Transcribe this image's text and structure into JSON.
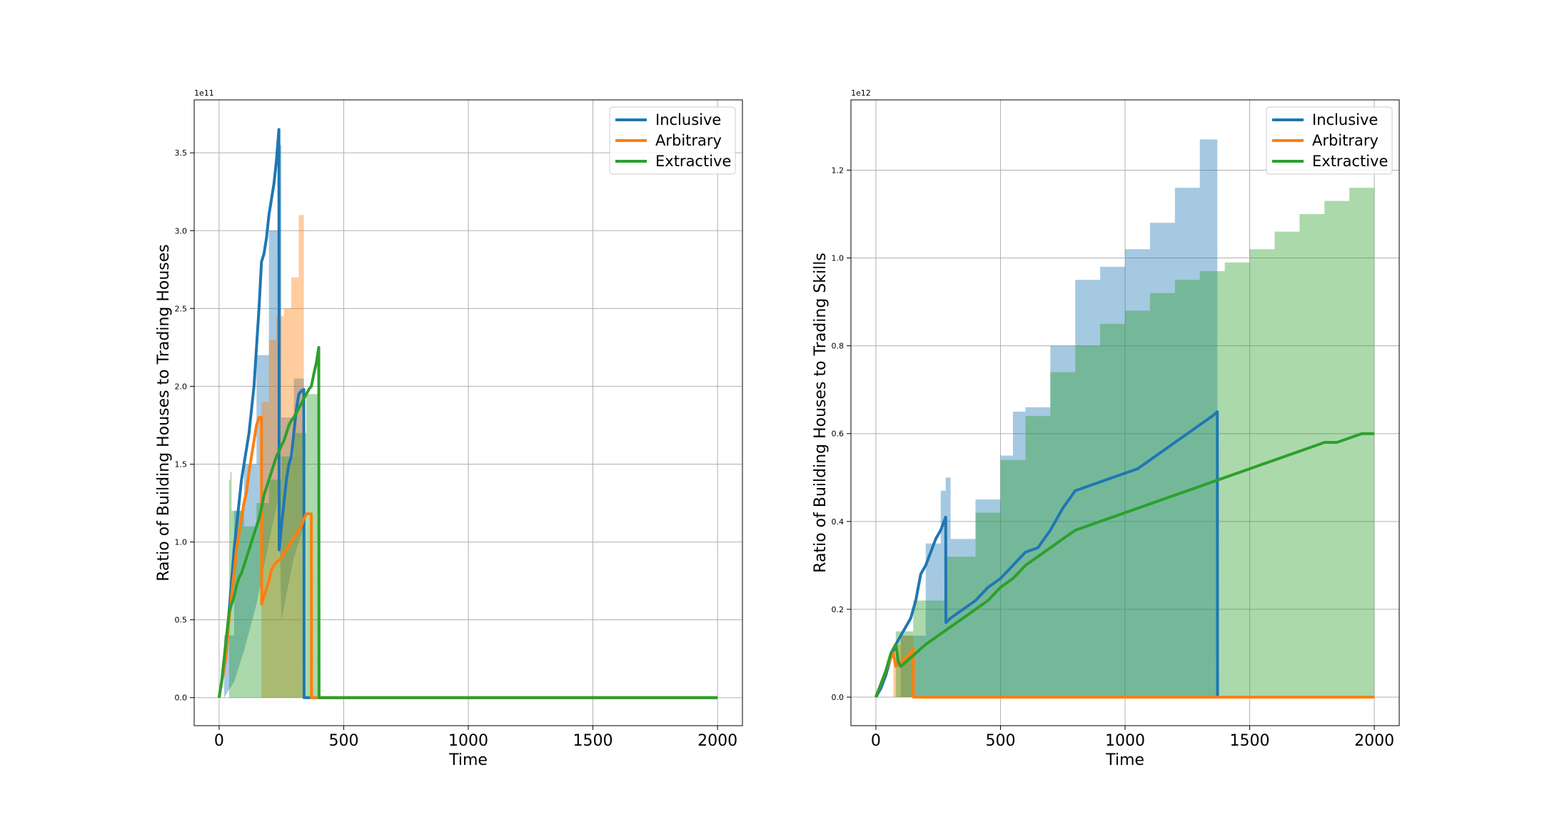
{
  "colors": {
    "inclusive": "#1f77b4",
    "arbitrary": "#ff7f0e",
    "extractive": "#2ca02c",
    "grid": "#b0b0b0"
  },
  "chart_data": [
    {
      "type": "line",
      "xlabel": "Time",
      "ylabel": "Ratio of Building Houses to Trading Houses",
      "y_exponent_label": "1e11",
      "xlim": [
        -100,
        2100
      ],
      "ylim": [
        -0.18,
        3.84
      ],
      "x_ticks": [
        0,
        500,
        1000,
        1500,
        2000
      ],
      "x_tick_labels": [
        "0",
        "500",
        "1000",
        "1500",
        "2000"
      ],
      "y_ticks": [
        0.0,
        0.5,
        1.0,
        1.5,
        2.0,
        2.5,
        3.0,
        3.5
      ],
      "y_tick_labels": [
        "0.0",
        "0.5",
        "1.0",
        "1.5",
        "2.0",
        "2.5",
        "3.0",
        "3.5"
      ],
      "grid": true,
      "legend_position": "top-right",
      "series": [
        {
          "name": "Inclusive",
          "color_key": "inclusive",
          "x": [
            0,
            10,
            20,
            30,
            40,
            50,
            60,
            70,
            80,
            90,
            100,
            110,
            120,
            130,
            140,
            150,
            160,
            170,
            180,
            190,
            200,
            210,
            220,
            230,
            240,
            241,
            250,
            260,
            270,
            280,
            290,
            300,
            310,
            320,
            330,
            340,
            341,
            360,
            2000
          ],
          "y": [
            0.0,
            0.1,
            0.2,
            0.35,
            0.55,
            0.75,
            0.95,
            1.1,
            1.25,
            1.4,
            1.5,
            1.6,
            1.7,
            1.85,
            2.0,
            2.25,
            2.5,
            2.8,
            2.85,
            2.95,
            3.1,
            3.2,
            3.3,
            3.45,
            3.65,
            0.95,
            1.1,
            1.25,
            1.4,
            1.5,
            1.55,
            1.7,
            1.85,
            1.95,
            1.97,
            1.98,
            0.0,
            0.0,
            0.0
          ],
          "band_x": [
            20,
            60,
            100,
            150,
            200,
            240,
            250,
            300,
            340
          ],
          "band_upper": [
            0.4,
            1.2,
            1.5,
            2.2,
            3.0,
            3.55,
            1.8,
            2.05,
            2.1
          ],
          "band_lower": [
            0.0,
            0.1,
            0.3,
            0.6,
            1.0,
            1.3,
            0.5,
            0.9,
            1.1
          ]
        },
        {
          "name": "Arbitrary",
          "color_key": "arbitrary",
          "x": [
            0,
            10,
            20,
            30,
            40,
            50,
            60,
            70,
            80,
            90,
            100,
            110,
            120,
            130,
            140,
            150,
            160,
            170,
            171,
            180,
            190,
            200,
            210,
            220,
            230,
            240,
            250,
            260,
            270,
            280,
            290,
            300,
            310,
            320,
            330,
            340,
            350,
            370,
            371,
            380,
            2000
          ],
          "y": [
            0.0,
            0.1,
            0.18,
            0.3,
            0.5,
            0.65,
            0.8,
            0.95,
            1.05,
            1.15,
            1.25,
            1.32,
            1.45,
            1.55,
            1.65,
            1.75,
            1.8,
            1.8,
            0.6,
            0.65,
            0.7,
            0.75,
            0.82,
            0.85,
            0.87,
            0.88,
            0.9,
            0.93,
            0.95,
            0.98,
            1.0,
            1.03,
            1.05,
            1.08,
            1.1,
            1.15,
            1.18,
            1.18,
            0.0,
            0.0,
            0.0
          ],
          "band_x": [
            170,
            200,
            230,
            260,
            290,
            320,
            340
          ],
          "band_upper": [
            1.9,
            2.3,
            2.45,
            2.5,
            2.7,
            3.1,
            3.15
          ],
          "band_lower": [
            0.0,
            0.0,
            0.0,
            0.0,
            0.0,
            0.0,
            0.0
          ]
        },
        {
          "name": "Extractive",
          "color_key": "extractive",
          "x": [
            0,
            10,
            20,
            30,
            40,
            50,
            60,
            70,
            80,
            90,
            100,
            110,
            120,
            130,
            140,
            150,
            160,
            170,
            180,
            190,
            200,
            210,
            220,
            230,
            240,
            250,
            260,
            270,
            280,
            290,
            300,
            310,
            320,
            330,
            340,
            350,
            360,
            370,
            380,
            390,
            400,
            401,
            420,
            2000
          ],
          "y": [
            0.0,
            0.1,
            0.25,
            0.4,
            0.55,
            0.6,
            0.65,
            0.72,
            0.77,
            0.8,
            0.85,
            0.9,
            0.95,
            1.0,
            1.05,
            1.1,
            1.15,
            1.22,
            1.3,
            1.35,
            1.4,
            1.45,
            1.5,
            1.55,
            1.58,
            1.62,
            1.65,
            1.7,
            1.75,
            1.78,
            1.8,
            1.83,
            1.86,
            1.89,
            1.92,
            1.95,
            1.98,
            2.0,
            2.08,
            2.15,
            2.25,
            0.0,
            0.0,
            0.0
          ],
          "band_x": [
            40,
            45,
            50,
            100,
            150,
            200,
            250,
            300,
            350,
            400
          ],
          "band_upper": [
            1.4,
            1.45,
            1.2,
            1.1,
            1.25,
            1.4,
            1.55,
            1.7,
            1.95,
            2.2
          ],
          "band_lower": [
            0.0,
            0.0,
            0.0,
            0.0,
            0.0,
            0.0,
            0.0,
            0.0,
            0.0,
            0.0
          ]
        }
      ]
    },
    {
      "type": "line",
      "xlabel": "Time",
      "ylabel": "Ratio of Building Houses to Trading Skills",
      "y_exponent_label": "1e12",
      "xlim": [
        -100,
        2100
      ],
      "ylim": [
        -0.065,
        1.36
      ],
      "x_ticks": [
        0,
        500,
        1000,
        1500,
        2000
      ],
      "x_tick_labels": [
        "0",
        "500",
        "1000",
        "1500",
        "2000"
      ],
      "y_ticks": [
        0.0,
        0.2,
        0.4,
        0.6,
        0.8,
        1.0,
        1.2
      ],
      "y_tick_labels": [
        "0.0",
        "0.2",
        "0.4",
        "0.6",
        "0.8",
        "1.0",
        "1.2"
      ],
      "grid": true,
      "legend_position": "top-right",
      "series": [
        {
          "name": "Inclusive",
          "color_key": "inclusive",
          "x": [
            0,
            20,
            40,
            60,
            80,
            100,
            120,
            140,
            160,
            180,
            200,
            220,
            240,
            260,
            280,
            281,
            300,
            350,
            400,
            450,
            500,
            550,
            600,
            650,
            700,
            750,
            800,
            850,
            900,
            950,
            1000,
            1050,
            1100,
            1150,
            1200,
            1250,
            1300,
            1350,
            1370,
            1371,
            2000
          ],
          "y": [
            0.0,
            0.02,
            0.05,
            0.09,
            0.12,
            0.14,
            0.16,
            0.18,
            0.22,
            0.28,
            0.3,
            0.33,
            0.36,
            0.38,
            0.41,
            0.17,
            0.18,
            0.2,
            0.22,
            0.25,
            0.27,
            0.3,
            0.33,
            0.34,
            0.38,
            0.43,
            0.47,
            0.48,
            0.49,
            0.5,
            0.51,
            0.52,
            0.54,
            0.56,
            0.58,
            0.6,
            0.62,
            0.64,
            0.65,
            0.0,
            0.0
          ],
          "band_x": [
            0,
            100,
            200,
            260,
            280,
            300,
            400,
            500,
            550,
            600,
            700,
            800,
            900,
            1000,
            1100,
            1200,
            1300,
            1370
          ],
          "band_upper": [
            0.0,
            0.14,
            0.35,
            0.47,
            0.5,
            0.36,
            0.45,
            0.55,
            0.65,
            0.66,
            0.8,
            0.95,
            0.98,
            1.02,
            1.08,
            1.16,
            1.27,
            1.3
          ],
          "band_lower": [
            0.0,
            0.0,
            0.0,
            0.0,
            0.0,
            0.0,
            0.0,
            0.0,
            0.0,
            0.0,
            0.0,
            0.0,
            0.0,
            0.0,
            0.0,
            0.0,
            0.0,
            0.0
          ]
        },
        {
          "name": "Arbitrary",
          "color_key": "arbitrary",
          "x": [
            0,
            20,
            40,
            60,
            70,
            80,
            90,
            100,
            120,
            140,
            150,
            151,
            2000
          ],
          "y": [
            0.0,
            0.03,
            0.06,
            0.09,
            0.1,
            0.07,
            0.075,
            0.08,
            0.09,
            0.1,
            0.11,
            0.0,
            0.0
          ],
          "band_x": [
            70,
            100,
            150
          ],
          "band_upper": [
            0.12,
            0.14,
            0.13
          ],
          "band_lower": [
            0.0,
            0.0,
            0.0
          ]
        },
        {
          "name": "Extractive",
          "color_key": "extractive",
          "x": [
            0,
            20,
            40,
            60,
            80,
            90,
            100,
            120,
            140,
            160,
            180,
            200,
            250,
            300,
            350,
            400,
            450,
            500,
            550,
            600,
            650,
            700,
            750,
            800,
            850,
            900,
            950,
            1000,
            1050,
            1100,
            1150,
            1200,
            1250,
            1300,
            1350,
            1400,
            1450,
            1500,
            1550,
            1600,
            1650,
            1700,
            1750,
            1800,
            1850,
            1900,
            1950,
            2000
          ],
          "y": [
            0.0,
            0.03,
            0.06,
            0.1,
            0.12,
            0.08,
            0.07,
            0.08,
            0.09,
            0.1,
            0.11,
            0.12,
            0.14,
            0.16,
            0.18,
            0.2,
            0.22,
            0.25,
            0.27,
            0.3,
            0.32,
            0.34,
            0.36,
            0.38,
            0.39,
            0.4,
            0.41,
            0.42,
            0.43,
            0.44,
            0.45,
            0.46,
            0.47,
            0.48,
            0.49,
            0.5,
            0.51,
            0.52,
            0.53,
            0.54,
            0.55,
            0.56,
            0.57,
            0.58,
            0.58,
            0.59,
            0.6,
            0.6
          ],
          "band_x": [
            80,
            150,
            280,
            400,
            500,
            600,
            700,
            800,
            900,
            1000,
            1100,
            1200,
            1300,
            1400,
            1500,
            1600,
            1700,
            1800,
            1900,
            2000
          ],
          "band_upper": [
            0.15,
            0.22,
            0.32,
            0.42,
            0.54,
            0.64,
            0.74,
            0.8,
            0.85,
            0.88,
            0.92,
            0.95,
            0.97,
            0.99,
            1.02,
            1.06,
            1.1,
            1.13,
            1.16,
            1.2
          ],
          "band_lower": [
            0.0,
            0.0,
            0.0,
            0.0,
            0.0,
            0.0,
            0.0,
            0.0,
            0.0,
            0.0,
            0.0,
            0.0,
            0.0,
            0.0,
            0.0,
            0.0,
            0.0,
            0.0,
            0.0,
            0.0
          ]
        }
      ]
    }
  ]
}
